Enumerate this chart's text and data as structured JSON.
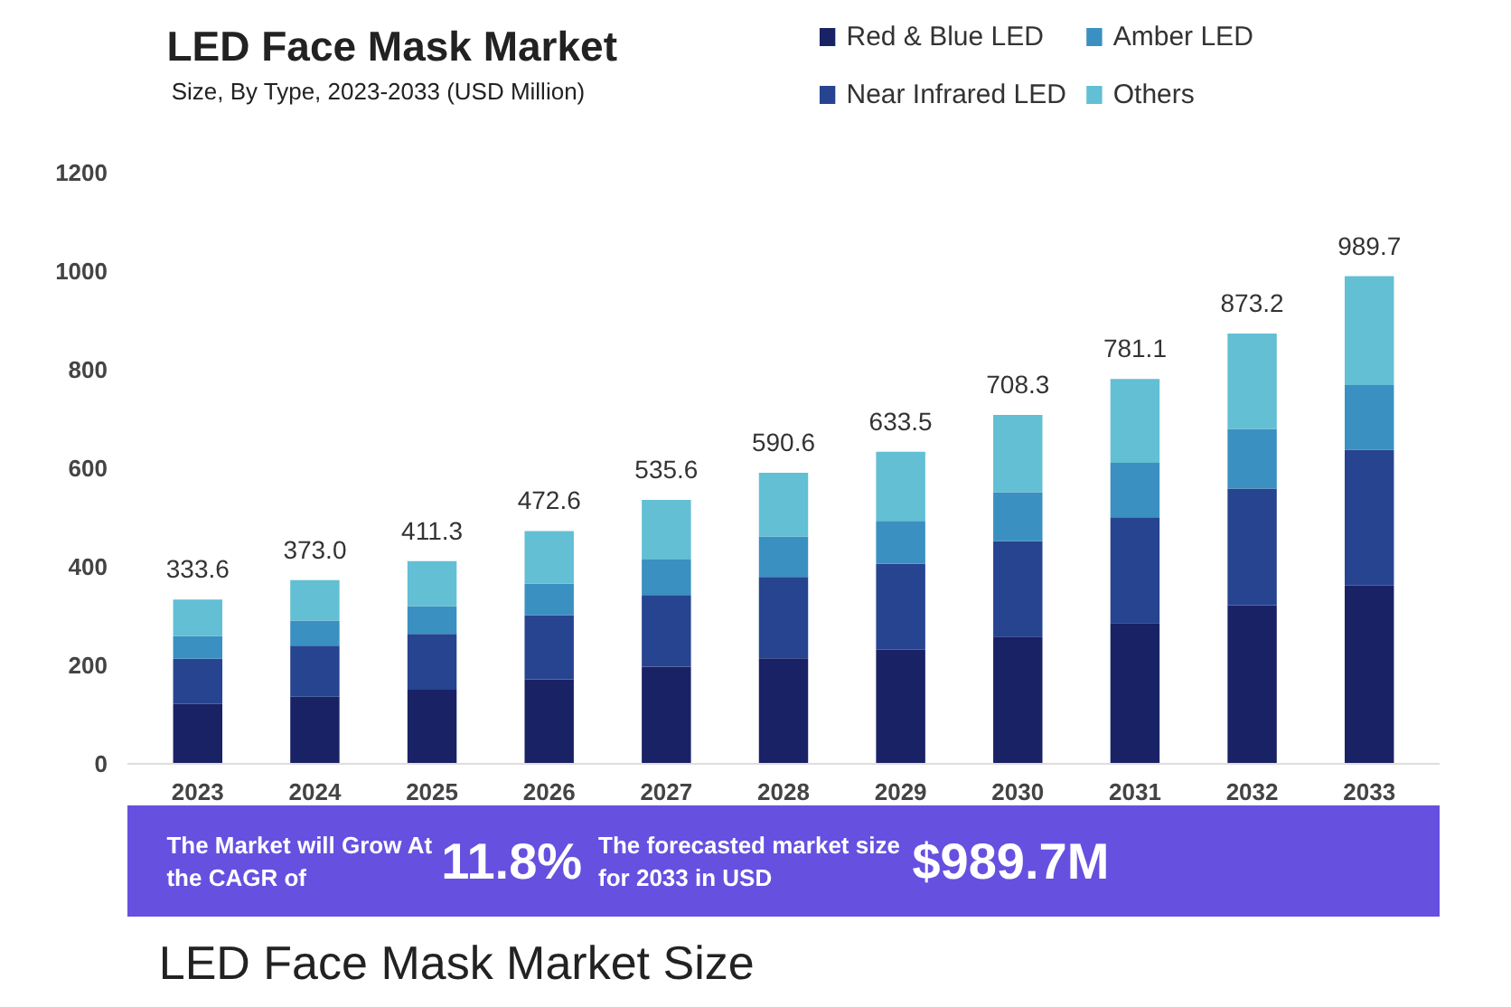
{
  "chart_data": {
    "type": "bar",
    "title": "LED Face Mask Market",
    "subtitle": "Size, By Type, 2023-2033 (USD Million)",
    "categories": [
      "2023",
      "2024",
      "2025",
      "2026",
      "2027",
      "2028",
      "2029",
      "2030",
      "2031",
      "2032",
      "2033"
    ],
    "stacked": true,
    "series": [
      {
        "name": "Red & Blue LED",
        "color": "#1a2266",
        "values": [
          121.5,
          136.4,
          150.6,
          171.7,
          197.3,
          214.3,
          231.7,
          258.3,
          285.9,
          321.8,
          361.7
        ]
      },
      {
        "name": "Near Infrared LED",
        "color": "#26448f",
        "values": [
          91.7,
          103.4,
          113.2,
          130.3,
          145.3,
          165.2,
          174.3,
          193.7,
          214.7,
          237.1,
          275.8
        ]
      },
      {
        "name": "Amber LED",
        "color": "#3a90c0",
        "values": [
          45.8,
          51.2,
          56.6,
          63.6,
          72.1,
          82.1,
          87.2,
          99.5,
          110.5,
          120.7,
          131.5
        ]
      },
      {
        "name": "Others",
        "color": "#62bfd4",
        "values": [
          74.6,
          82.0,
          90.9,
          107.0,
          120.9,
          129.0,
          140.3,
          156.8,
          170.0,
          193.6,
          220.7
        ]
      }
    ],
    "totals": [
      "333.6",
      "373.0",
      "411.3",
      "472.6",
      "535.6",
      "590.6",
      "633.5",
      "708.3",
      "781.1",
      "873.2",
      "989.7"
    ],
    "ylim": [
      0,
      1200
    ],
    "yticks": [
      0,
      200,
      400,
      600,
      800,
      1000,
      1200
    ],
    "grid": false,
    "legend": "top right",
    "annotations": [
      "The Market will Grow At the CAGR of",
      "11.8%",
      "The forecasted market size for 2033 in USD",
      "$989.7M",
      "LED Face Mask Market Size"
    ]
  }
}
